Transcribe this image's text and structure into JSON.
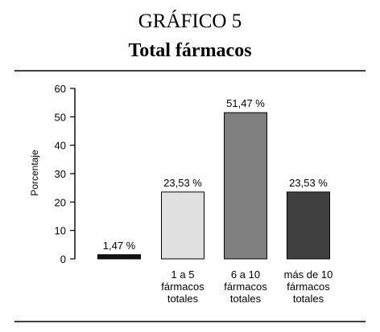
{
  "figure_label": "GRÁFICO 5",
  "chart_data": {
    "type": "bar",
    "title": "Total fármacos",
    "ylabel": "Porcentaje",
    "xlabel": "",
    "ylim": [
      0,
      60
    ],
    "yticks": [
      0,
      10,
      20,
      30,
      40,
      50,
      60
    ],
    "grid": false,
    "categories": [
      [],
      [
        "1 a 5",
        "fármacos",
        "totales"
      ],
      [
        "6 a 10",
        "fármacos",
        "totales"
      ],
      [
        "más de 10",
        "fármacos",
        "totales"
      ]
    ],
    "values": [
      1.47,
      23.53,
      51.47,
      23.53
    ],
    "value_labels": [
      "1,47 %",
      "23,53 %",
      "51,47 %",
      "23,53 %"
    ],
    "colors": [
      "#111111",
      "#e0e0e0",
      "#808080",
      "#404040"
    ]
  }
}
